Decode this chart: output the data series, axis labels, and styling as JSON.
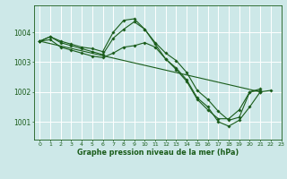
{
  "background_color": "#cde8e8",
  "grid_color": "#ffffff",
  "line_color": "#1a5c1a",
  "title": "Graphe pression niveau de la mer (hPa)",
  "xlim": [
    -0.5,
    23
  ],
  "ylim": [
    1000.4,
    1004.9
  ],
  "yticks": [
    1001,
    1002,
    1003,
    1004
  ],
  "xticks": [
    0,
    1,
    2,
    3,
    4,
    5,
    6,
    7,
    8,
    9,
    10,
    11,
    12,
    13,
    14,
    15,
    16,
    17,
    18,
    19,
    20,
    21,
    22,
    23
  ],
  "series": [
    {
      "x": [
        0,
        1,
        2,
        3,
        4,
        5,
        6,
        7,
        8,
        9,
        10,
        11,
        12,
        13,
        14,
        15,
        16,
        17,
        18,
        19,
        20,
        21
      ],
      "y": [
        1003.7,
        1003.85,
        1003.7,
        1003.6,
        1003.5,
        1003.45,
        1003.35,
        1004.0,
        1004.4,
        1004.45,
        1004.1,
        1003.65,
        1003.3,
        1003.05,
        1002.65,
        1002.05,
        1001.75,
        1001.35,
        1001.05,
        1001.15,
        1002.0,
        1002.1
      ]
    },
    {
      "x": [
        0,
        1,
        2,
        3,
        4,
        5,
        6,
        7,
        8,
        9,
        10,
        11,
        12,
        13,
        14,
        15,
        16,
        17,
        18,
        19,
        20,
        21,
        22
      ],
      "y": [
        1003.7,
        1003.85,
        1003.65,
        1003.55,
        1003.45,
        1003.35,
        1003.25,
        1003.8,
        1004.1,
        1004.35,
        1004.1,
        1003.6,
        1003.1,
        1002.8,
        1002.4,
        1001.8,
        1001.5,
        1001.0,
        1000.85,
        1001.05,
        1001.5,
        1002.0,
        1002.05
      ]
    },
    {
      "x": [
        0,
        1,
        2,
        3,
        4,
        5,
        6,
        7,
        8,
        9,
        10,
        11,
        12,
        13,
        14,
        15,
        16,
        17,
        18,
        19,
        20,
        21
      ],
      "y": [
        1003.7,
        1003.75,
        1003.5,
        1003.4,
        1003.3,
        1003.2,
        1003.15,
        1003.3,
        1003.5,
        1003.55,
        1003.65,
        1003.5,
        1003.1,
        1002.75,
        1002.35,
        1001.75,
        1001.4,
        1001.1,
        1001.1,
        1001.4,
        1002.0,
        1002.05
      ]
    },
    {
      "x": [
        0,
        21
      ],
      "y": [
        1003.7,
        1002.0
      ]
    }
  ]
}
